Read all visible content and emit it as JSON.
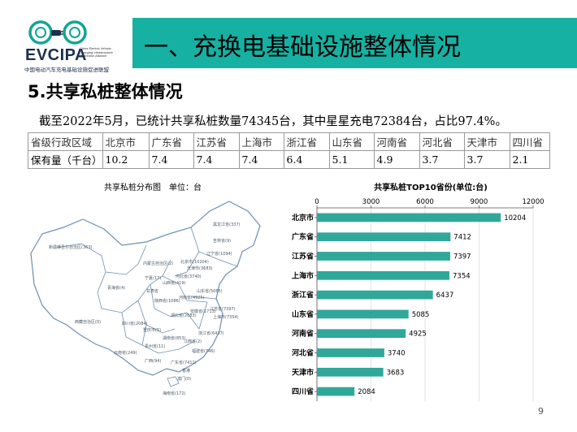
{
  "logo": {
    "word": "EVCIPA",
    "sub": "China Electric Vehicle Charging Infrastructure Promotion Alliance",
    "cn": "中国电动汽车充电基础设施促进联盟"
  },
  "header": {
    "title": "一、充换电基础设施整体情况"
  },
  "section": {
    "title": "5.共享私桩整体情况"
  },
  "summary": "截至2022年5月，已统计共享私桩数量74345台，其中星星充电72384台，占比97.4%。",
  "table": {
    "row1": [
      "省级行政区域",
      "北京市",
      "广东省",
      "江苏省",
      "上海市",
      "浙江省",
      "山东省",
      "河南省",
      "河北省",
      "天津市",
      "四川省"
    ],
    "row2": [
      "保有量（千台）",
      "10.2",
      "7.4",
      "7.4",
      "7.4",
      "6.4",
      "5.1",
      "4.9",
      "3.7",
      "3.7",
      "2.1"
    ]
  },
  "map": {
    "title": "共享私桩分布图　单位：台",
    "labels": [
      "黑龙江省(337)",
      "吉林省(9)",
      "辽宁省(1094)",
      "内蒙古自治区(2)",
      "北京市(10204)",
      "天津市(3683)",
      "河北省(3740)",
      "山西省(419)",
      "新疆维吾尔自治区(363)",
      "宁夏(17)",
      "青海省(4)",
      "甘肃省",
      "陕西省(1086)",
      "山东省(5085)",
      "河南省(4925)",
      "江苏省(7397)",
      "上海市(7354)",
      "安徽省(1713)",
      "湖北省(2083)",
      "浙江省(6437)",
      "四川省(2084)",
      "重庆市(5)",
      "西藏自治区(0)",
      "湖南省(853)",
      "江西省(2)",
      "福建省(746)",
      "贵州省(11)",
      "云南省(249)",
      "广西(94)",
      "广东省(7412)",
      "香港",
      "澳门(0)",
      "海南省(172)"
    ]
  },
  "chart_data": {
    "type": "bar",
    "orientation": "horizontal",
    "title": "共享私桩TOP10省份(单位:台)",
    "categories": [
      "北京市",
      "广东省",
      "江苏省",
      "上海市",
      "浙江省",
      "山东省",
      "河南省",
      "河北省",
      "天津市",
      "四川省"
    ],
    "values": [
      10204,
      7412,
      7397,
      7354,
      6437,
      5085,
      4925,
      3740,
      3683,
      2084
    ],
    "xlim": [
      0,
      12000
    ],
    "xticks": [
      "0",
      "3000",
      "6000",
      "9000",
      "12000"
    ],
    "axis": "top",
    "grid": true,
    "bar_color": "#2fa89a"
  },
  "page_number": "9"
}
